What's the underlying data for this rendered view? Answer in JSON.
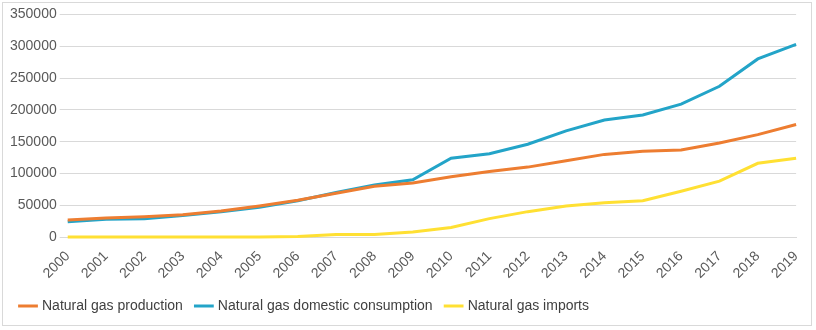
{
  "chart_data": {
    "type": "line",
    "categories": [
      "2000",
      "2001",
      "2002",
      "2003",
      "2004",
      "2005",
      "2006",
      "2007",
      "2008",
      "2009",
      "2010",
      "2011",
      "2012",
      "2013",
      "2014",
      "2015",
      "2016",
      "2017",
      "2018",
      "2019"
    ],
    "series": [
      {
        "name": "Natural gas production",
        "color": "#ed7d31",
        "values": [
          27000,
          30000,
          32000,
          35000,
          41000,
          49000,
          58000,
          69000,
          80000,
          85000,
          95000,
          103000,
          110000,
          120000,
          130000,
          135000,
          137000,
          148000,
          161000,
          177000
        ]
      },
      {
        "name": "Natural gas domestic consumption",
        "color": "#23a4c8",
        "values": [
          24000,
          28000,
          29000,
          34000,
          40000,
          47000,
          57000,
          70000,
          82000,
          90000,
          124000,
          131000,
          146000,
          167000,
          184000,
          192000,
          209000,
          237000,
          280000,
          303000
        ]
      },
      {
        "name": "Natural gas imports",
        "color": "#ffe033",
        "values": [
          0,
          0,
          0,
          0,
          0,
          0,
          1000,
          4000,
          4000,
          8000,
          15000,
          29000,
          40000,
          49000,
          54000,
          57000,
          72000,
          88000,
          116000,
          124000
        ]
      }
    ],
    "ylim": [
      0,
      350000
    ],
    "yticks": [
      0,
      50000,
      100000,
      150000,
      200000,
      250000,
      300000,
      350000
    ],
    "grid": true,
    "legend": "bottom"
  }
}
